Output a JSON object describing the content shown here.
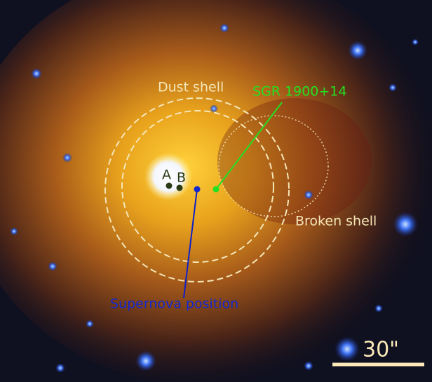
{
  "annotations": {
    "dust_shell": "Dust shell",
    "sgr": "SGR 1900+14",
    "star_a": "A",
    "star_b": "B",
    "broken_shell": "Broken shell",
    "supernova": "Supernova position",
    "scale": "30\""
  }
}
